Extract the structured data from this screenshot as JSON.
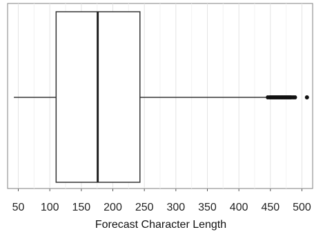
{
  "chart_data": {
    "type": "boxplot",
    "xlabel": "Forecast Character Length",
    "xlim": [
      33,
      517
    ],
    "xticks": [
      50,
      100,
      150,
      200,
      250,
      300,
      350,
      400,
      450,
      500
    ],
    "grid": true,
    "orientation": "horizontal",
    "stats": {
      "min": 43,
      "q1": 110,
      "median": 176,
      "q3": 243,
      "whisker_high": 443
    },
    "outliers": [
      446,
      449,
      451,
      453,
      455,
      457,
      459,
      461,
      463,
      465,
      467,
      469,
      471,
      473,
      475,
      477,
      479,
      481,
      483,
      486,
      489,
      508
    ]
  }
}
